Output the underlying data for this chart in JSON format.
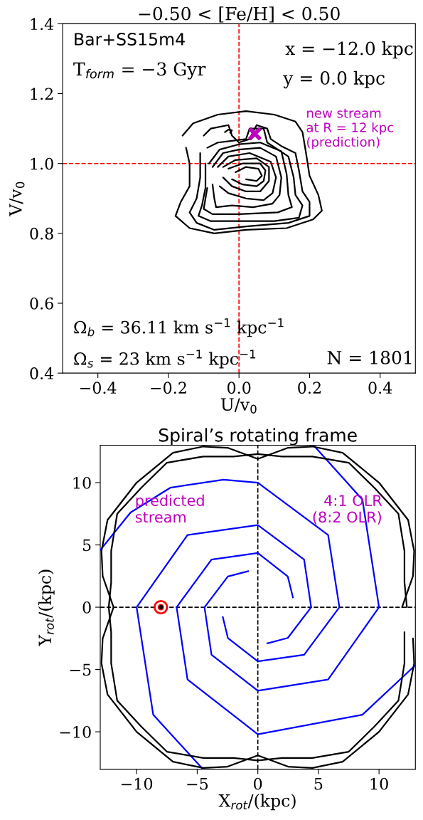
{
  "chart_data": [
    {
      "type": "line",
      "title": "−0.50 < [Fe/H] < 0.50",
      "xlabel": "U/v$_{0}$",
      "ylabel": "V/v$_{0}$",
      "xlim": [
        -0.5,
        0.5
      ],
      "ylim": [
        0.4,
        1.4
      ],
      "xticks": [
        {
          "value": -0.4,
          "label": "−0.4"
        },
        {
          "value": -0.2,
          "label": "−0.2"
        },
        {
          "value": 0,
          "label": "0.0"
        },
        0.2,
        0.4
      ],
      "yticks": [
        0.4,
        0.6,
        0.8,
        {
          "value": 1,
          "label": "1.0"
        },
        1.2,
        1.4
      ],
      "ref_lines": [
        {
          "axis": "x",
          "value": 0.0,
          "color": "#ff0000",
          "line_style": "dashed"
        },
        {
          "axis": "y",
          "value": 1.0,
          "color": "#ff0000",
          "line_style": "dashed"
        }
      ],
      "annotations": [
        "Bar+SS15m4",
        "T$_{form}$ = −3 Gyr",
        "x = −12.0 kpc",
        "y = 0.0 kpc",
        "new stream\nat R = 12 kpc\n(prediction)",
        "Ω$_{b}$ = 36.11 km s$^{−1}$ kpc$^{−1}$",
        "Ω$_{s}$ = 23 km s$^{−1}$ kpc$^{−1}$",
        "N = 1801"
      ],
      "series": [
        {
          "color": "#000000",
          "x": [
            -0.16,
            -0.13,
            -0.06,
            0.02,
            0.1,
            0.16,
            0.18,
            0.19,
            0.2,
            0.225,
            0.235,
            0.21,
            0.135,
            0.02,
            -0.07,
            -0.14,
            -0.18,
            -0.165,
            -0.14,
            -0.14,
            -0.15
          ],
          "values": [
            1.08,
            1.115,
            1.14,
            1.15,
            1.14,
            1.12,
            1.09,
            1.03,
            0.965,
            0.91,
            0.865,
            0.84,
            0.815,
            0.81,
            0.8,
            0.815,
            0.85,
            0.89,
            0.935,
            1.0,
            1.045
          ]
        },
        {
          "color": "#000000",
          "x": [
            -0.1,
            -0.08,
            -0.03,
            -0.02,
            0.0,
            0.03,
            0.05,
            0.08,
            0.09,
            0.12,
            0.16,
            0.17,
            0.18,
            0.2,
            0.2,
            0.14,
            0.02,
            -0.07,
            -0.12,
            -0.14,
            -0.12,
            -0.11,
            -0.11
          ],
          "values": [
            1.08,
            1.1,
            1.11,
            1.08,
            1.06,
            1.07,
            1.11,
            1.1,
            1.07,
            1.05,
            1.03,
            0.98,
            0.92,
            0.89,
            0.85,
            0.83,
            0.82,
            0.81,
            0.83,
            0.86,
            0.9,
            0.96,
            1.03
          ]
        },
        {
          "color": "#000000",
          "x": [
            -0.09,
            -0.06,
            -0.02,
            0.02,
            0.03,
            0.07,
            0.08,
            0.14,
            0.155,
            0.16,
            0.18,
            0.17,
            0.1,
            0.0,
            -0.08,
            -0.115,
            -0.105,
            -0.095,
            -0.095
          ],
          "values": [
            1.045,
            1.06,
            1.065,
            1.07,
            1.1,
            1.1,
            1.06,
            1.02,
            0.96,
            0.91,
            0.88,
            0.845,
            0.835,
            0.835,
            0.835,
            0.85,
            0.88,
            0.93,
            1.0
          ]
        },
        {
          "color": "#000000",
          "x": [
            -0.04,
            -0.03,
            -0.02,
            -0.025
          ],
          "values": [
            1.09,
            1.097,
            1.095,
            1.088
          ]
        },
        {
          "color": "#000000",
          "x": [
            -0.085,
            -0.055,
            0.0,
            0.06,
            0.12,
            0.135,
            0.14,
            0.15,
            0.11,
            0.0,
            -0.075,
            -0.1,
            -0.09
          ],
          "values": [
            1.0,
            1.04,
            1.055,
            1.06,
            1.035,
            0.97,
            0.91,
            0.875,
            0.86,
            0.855,
            0.855,
            0.87,
            0.93
          ]
        },
        {
          "color": "#000000",
          "x": [
            -0.075,
            -0.045,
            0.0,
            0.06,
            0.105,
            0.12,
            0.115,
            0.095,
            0.04,
            -0.02,
            -0.065,
            -0.07,
            -0.075
          ],
          "values": [
            0.99,
            1.03,
            1.04,
            1.045,
            1.02,
            0.96,
            0.91,
            0.885,
            0.875,
            0.88,
            0.875,
            0.9,
            0.94
          ]
        },
        {
          "color": "#000000",
          "x": [
            -0.06,
            -0.03,
            0.03,
            0.09,
            0.105,
            0.095,
            0.07,
            0.02,
            -0.03,
            -0.055
          ],
          "values": [
            0.99,
            1.02,
            1.03,
            1.005,
            0.96,
            0.915,
            0.895,
            0.9,
            0.915,
            0.935
          ]
        },
        {
          "color": "#000000",
          "x": [
            -0.045,
            -0.01,
            0.05,
            0.085,
            0.085,
            0.06,
            0.02,
            -0.02,
            -0.045
          ],
          "values": [
            0.99,
            1.01,
            1.015,
            0.99,
            0.95,
            0.92,
            0.92,
            0.935,
            0.96
          ]
        },
        {
          "color": "#000000",
          "x": [
            -0.03,
            0.01,
            0.06,
            0.075,
            0.07,
            0.05,
            0.01,
            -0.02
          ],
          "values": [
            0.985,
            1.0,
            1.0,
            0.98,
            0.95,
            0.935,
            0.94,
            0.955
          ]
        },
        {
          "color": "#000000",
          "x": [
            -0.01,
            0.02,
            0.055,
            0.065,
            0.05,
            0.02
          ],
          "values": [
            0.975,
            0.99,
            0.985,
            0.965,
            0.95,
            0.955
          ]
        },
        {
          "type": "scatter",
          "color": "#bf00bf",
          "marker": "cross",
          "x": [
            0.045
          ],
          "values": [
            1.085
          ]
        }
      ]
    },
    {
      "type": "line",
      "title": "Spiral’s rotating frame",
      "xlabel": "X$_{rot}$/(kpc)",
      "ylabel": "Y$_{rot}$/(kpc)",
      "xlim": [
        -13,
        13
      ],
      "ylim": [
        -13,
        13
      ],
      "xticks": [
        {
          "value": -10,
          "label": "−10"
        },
        {
          "value": -5,
          "label": "−5"
        },
        0,
        5,
        10
      ],
      "yticks": [
        {
          "value": -10,
          "label": "−10"
        },
        {
          "value": -5,
          "label": "−5"
        },
        0,
        5,
        10
      ],
      "ref_lines": [
        {
          "axis": "x",
          "value": 0,
          "color": "#000000",
          "line_style": "dashed"
        },
        {
          "axis": "y",
          "value": 0,
          "color": "#000000",
          "line_style": "dashed"
        }
      ],
      "annotations": [
        "predicted\nstream",
        "4:1 OLR\n(8:2 OLR)"
      ],
      "series": [
        {
          "color": "#0000ff",
          "x": [
            -0.78,
            -2.47,
            -4.4,
            -3.82,
            0,
            5.8,
            10.0,
            8.63,
            4.6
          ],
          "values": [
            2.9,
            2.47,
            0,
            -3.82,
            -6.7,
            -5.8,
            0,
            8.63,
            13.0
          ]
        },
        {
          "color": "#0000ff",
          "x": [
            2.9,
            2.47,
            0,
            -3.82,
            -6.7,
            -5.8,
            0,
            8.63,
            13.0
          ],
          "values": [
            0.78,
            2.47,
            4.35,
            3.82,
            0,
            -5.8,
            -10.2,
            -8.63,
            -4.65
          ]
        },
        {
          "color": "#0000ff",
          "x": [
            -2.89,
            -2.47,
            0,
            3.82,
            6.73,
            5.8,
            0,
            -2.83,
            -7.2,
            -10.5,
            -13.0
          ],
          "values": [
            -0.78,
            -2.47,
            -4.35,
            -3.82,
            0,
            5.8,
            10.0,
            10.24,
            9.6,
            7.6,
            4.59
          ]
        },
        {
          "color": "#0000ff",
          "x": [
            0.78,
            2.47,
            4.4,
            3.82,
            0,
            -5.8,
            -10.0,
            -8.63,
            -4.53
          ],
          "values": [
            -2.9,
            -2.47,
            0,
            3.82,
            6.6,
            5.8,
            0,
            -8.63,
            -13.0
          ]
        },
        {
          "color": "#000000",
          "x": [
            11.9,
            12.8,
            12.9,
            12.4,
            10,
            7,
            4.5,
            2.5,
            0,
            -2.5,
            -4.5,
            -7,
            -10,
            -12.4,
            -12.9,
            -12.8,
            -11.9,
            -12.8,
            -12.9,
            -12.4,
            -10,
            -7,
            -4.5,
            -2.5,
            0,
            2.5,
            4.5,
            7,
            10,
            12.4,
            12.9,
            12.8
          ],
          "values": [
            0,
            2.5,
            4.5,
            7,
            10,
            12.4,
            12.9,
            12.8,
            11.9,
            12.8,
            12.9,
            12.4,
            10,
            7,
            4.5,
            2.5,
            0,
            -2.5,
            -4.5,
            -7,
            -10,
            -12.4,
            -12.9,
            -12.8,
            -11.9,
            -12.8,
            -12.9,
            -12.4,
            -10,
            -7,
            -4.5,
            -2.5
          ]
        },
        {
          "color": "#000000",
          "x": [
            12.3,
            12.1,
            12.1,
            11.6,
            9.6,
            7.5,
            4.5,
            2,
            0,
            -2,
            -4.5,
            -7.5,
            -9.6,
            -11.6,
            -12.1,
            -12.1,
            -12.3,
            -12.1,
            -12.1,
            -11.6,
            -9.6,
            -7.5,
            -4.5,
            -2,
            0,
            2,
            4.5,
            7.5,
            9.6,
            11.6,
            12.1,
            12.1
          ],
          "values": [
            0,
            2,
            4.5,
            7.5,
            9.6,
            11.6,
            12.1,
            12.1,
            12.3,
            12.1,
            12.1,
            11.6,
            9.6,
            7.5,
            4.5,
            2,
            0,
            -2,
            -4.5,
            -7.5,
            -9.6,
            -11.6,
            -12.1,
            -12.1,
            -12.3,
            -12.1,
            -12.1,
            -11.6,
            -9.6,
            -7.5,
            -4.5,
            -2
          ]
        },
        {
          "type": "scatter",
          "color": "#ff0000",
          "marker": "circle",
          "x": [
            -8.0
          ],
          "values": [
            0
          ]
        }
      ]
    }
  ]
}
